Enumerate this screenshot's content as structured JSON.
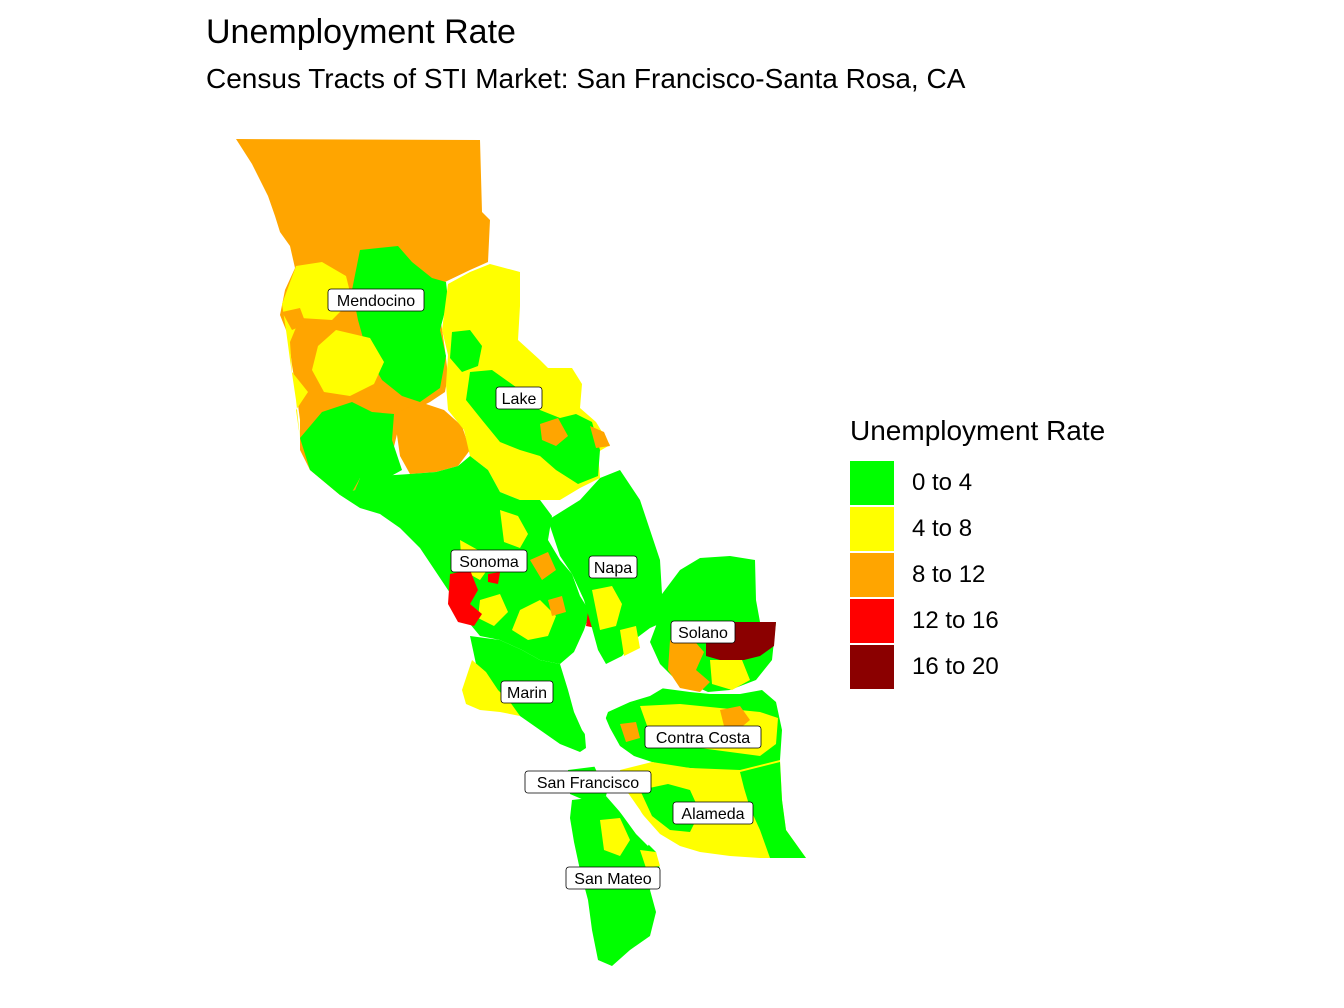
{
  "title": "Unemployment Rate",
  "subtitle": "Census Tracts of STI Market: San Francisco-Santa Rosa, CA",
  "legend": {
    "title": "Unemployment Rate",
    "items": [
      {
        "label": "0 to 4",
        "color": "#00ff00"
      },
      {
        "label": "4 to 8",
        "color": "#ffff00"
      },
      {
        "label": "8 to 12",
        "color": "#ffa500"
      },
      {
        "label": "12 to 16",
        "color": "#ff0000"
      },
      {
        "label": "16 to 20",
        "color": "#8b0000"
      }
    ]
  },
  "counties": [
    {
      "name": "Mendocino"
    },
    {
      "name": "Lake"
    },
    {
      "name": "Sonoma"
    },
    {
      "name": "Napa"
    },
    {
      "name": "Solano"
    },
    {
      "name": "Marin"
    },
    {
      "name": "Contra Costa"
    },
    {
      "name": "San Francisco"
    },
    {
      "name": "Alameda"
    },
    {
      "name": "San Mateo"
    }
  ]
}
